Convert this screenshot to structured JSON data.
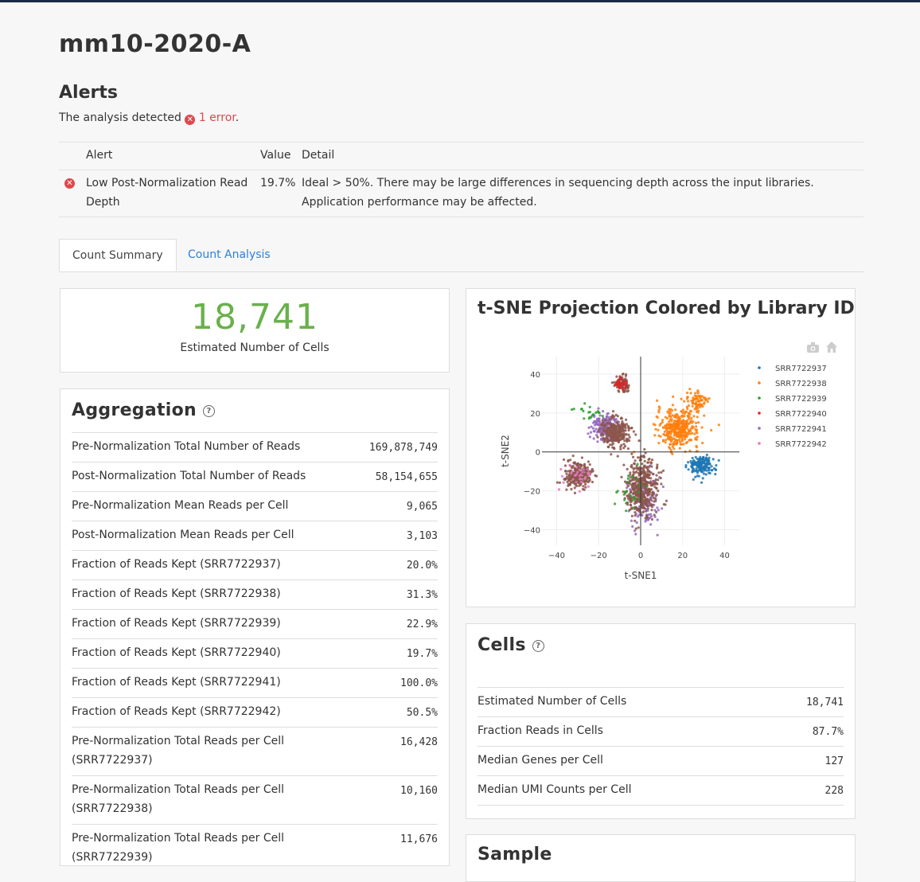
{
  "page_title": "mm10-2020-A",
  "alerts": {
    "heading": "Alerts",
    "sentence_prefix": "The analysis detected",
    "error_count": "1 error",
    "sentence_suffix": ".",
    "columns": {
      "alert": "Alert",
      "value": "Value",
      "detail": "Detail"
    },
    "rows": [
      {
        "alert_line1": "Low Post-Normalization Read",
        "alert_line2": "Depth",
        "value": "19.7%",
        "detail_line1": "Ideal > 50%. There may be large differences in sequencing depth across the input libraries.",
        "detail_line2": "Application performance may be affected.",
        "status_color": "#e0474c"
      }
    ]
  },
  "tabs": [
    {
      "label": "Count Summary",
      "active": true
    },
    {
      "label": "Count Analysis",
      "active": false
    }
  ],
  "summary": {
    "value": "18,741",
    "label": "Estimated Number of Cells",
    "value_color": "#6ab04c"
  },
  "aggregation": {
    "title": "Aggregation",
    "rows": [
      {
        "label": "Pre-Normalization Total Number of Reads",
        "value": "169,878,749"
      },
      {
        "label": "Post-Normalization Total Number of Reads",
        "value": "58,154,655"
      },
      {
        "label": "Pre-Normalization Mean Reads per Cell",
        "value": "9,065"
      },
      {
        "label": "Post-Normalization Mean Reads per Cell",
        "value": "3,103"
      },
      {
        "label": "Fraction of Reads Kept (SRR7722937)",
        "value": "20.0%"
      },
      {
        "label": "Fraction of Reads Kept (SRR7722938)",
        "value": "31.3%"
      },
      {
        "label": "Fraction of Reads Kept (SRR7722939)",
        "value": "22.9%"
      },
      {
        "label": "Fraction of Reads Kept (SRR7722940)",
        "value": "19.7%"
      },
      {
        "label": "Fraction of Reads Kept (SRR7722941)",
        "value": "100.0%"
      },
      {
        "label": "Fraction of Reads Kept (SRR7722942)",
        "value": "50.5%"
      },
      {
        "label": "Pre-Normalization Total Reads per Cell",
        "label2": "(SRR7722937)",
        "value": "16,428"
      },
      {
        "label": "Pre-Normalization Total Reads per Cell",
        "label2": "(SRR7722938)",
        "value": "10,160"
      },
      {
        "label": "Pre-Normalization Total Reads per Cell",
        "label2": "(SRR7722939)",
        "value": "11,676"
      }
    ]
  },
  "tsne": {
    "title": "t-SNE Projection Colored by Library ID",
    "toolbar": {
      "camera": "camera-icon",
      "home": "home-icon"
    }
  },
  "chart_data": {
    "type": "scatter",
    "title": "t-SNE Projection Colored by Library ID",
    "xlabel": "t-SNE1",
    "ylabel": "t-SNE2",
    "xlim": [
      -47,
      47
    ],
    "ylim": [
      -48,
      49
    ],
    "xticks": [
      -40,
      -20,
      0,
      20,
      40
    ],
    "yticks": [
      40,
      20,
      0,
      -20,
      -40
    ],
    "legend_position": "right",
    "series": [
      {
        "name": "SRR7722937",
        "color": "#1f77b4",
        "clusters": [
          {
            "cx": 29,
            "cy": -7,
            "sx": 5.5,
            "sy": 5,
            "n": 160
          }
        ]
      },
      {
        "name": "SRR7722938",
        "color": "#ff7f0e",
        "clusters": [
          {
            "cx": 18,
            "cy": 12,
            "sx": 9,
            "sy": 9,
            "n": 360
          },
          {
            "cx": 27,
            "cy": 26,
            "sx": 5,
            "sy": 5,
            "n": 80
          }
        ]
      },
      {
        "name": "SRR7722939",
        "color": "#2ca02c",
        "clusters": [
          {
            "cx": -24,
            "cy": 20,
            "sx": 5,
            "sy": 4,
            "n": 20
          },
          {
            "cx": -5,
            "cy": -20,
            "sx": 8,
            "sy": 12,
            "n": 25
          }
        ]
      },
      {
        "name": "SRR7722940",
        "color": "#d62728",
        "clusters": [
          {
            "cx": -9,
            "cy": 35,
            "sx": 3,
            "sy": 3,
            "n": 30
          }
        ]
      },
      {
        "name": "SRR7722941",
        "color": "#9467bd",
        "clusters": [
          {
            "cx": -17,
            "cy": 13,
            "sx": 6,
            "sy": 6,
            "n": 180
          },
          {
            "cx": 2,
            "cy": -25,
            "sx": 7,
            "sy": 12,
            "n": 120
          }
        ]
      },
      {
        "name": "SRR7722942",
        "color": "#e377c2",
        "clusters": [
          {
            "cx": -30,
            "cy": -13,
            "sx": 7,
            "sy": 6,
            "n": 30
          }
        ]
      },
      {
        "name": "dense-brown-mass",
        "color": "#8c564b",
        "hidden_in_legend": true,
        "clusters": [
          {
            "cx": -30,
            "cy": -12,
            "sx": 6,
            "sy": 6,
            "n": 240
          },
          {
            "cx": -12,
            "cy": 10,
            "sx": 6,
            "sy": 7,
            "n": 260
          },
          {
            "cx": 1,
            "cy": -18,
            "sx": 7,
            "sy": 13,
            "n": 420
          },
          {
            "cx": -9,
            "cy": 35,
            "sx": 3,
            "sy": 3.5,
            "n": 90
          }
        ]
      }
    ]
  },
  "cells": {
    "title": "Cells",
    "rows": [
      {
        "label": "Estimated Number of Cells",
        "value": "18,741"
      },
      {
        "label": "Fraction Reads in Cells",
        "value": "87.7%"
      },
      {
        "label": "Median Genes per Cell",
        "value": "127"
      },
      {
        "label": "Median UMI Counts per Cell",
        "value": "228"
      }
    ]
  },
  "sample": {
    "title": "Sample"
  }
}
